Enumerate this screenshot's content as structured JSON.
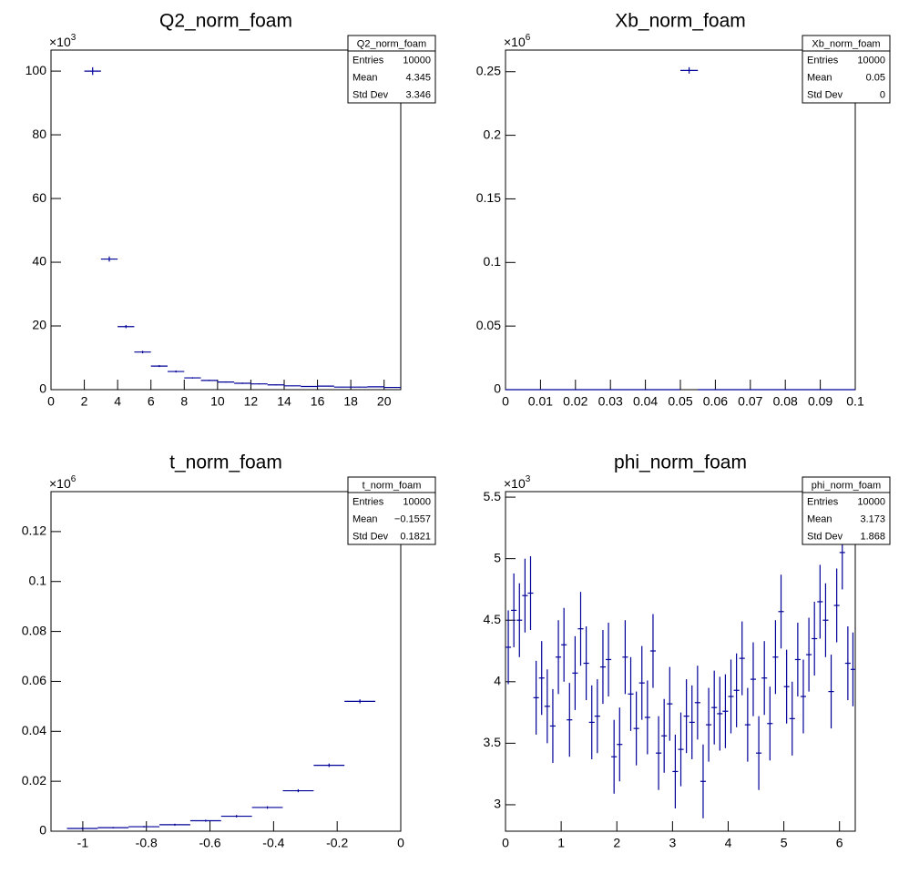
{
  "chart_data": [
    {
      "type": "histogram",
      "title": "Q2_norm_foam",
      "color": "#000099",
      "y_multiplier": {
        "base": "×10",
        "exponent": "3"
      },
      "stats": {
        "title": "Q2_norm_foam",
        "rows": [
          [
            "Entries",
            "10000"
          ],
          [
            "Mean",
            "4.345"
          ],
          [
            "Std Dev",
            "3.346"
          ]
        ]
      },
      "bins": [
        2,
        3,
        4,
        5,
        6,
        7,
        8,
        9,
        10,
        11,
        12,
        13,
        14,
        15,
        16,
        17,
        18,
        19,
        20,
        21
      ],
      "values": [
        100,
        41,
        19.8,
        11.8,
        7.4,
        5.7,
        3.7,
        2.9,
        2.4,
        2.0,
        1.8,
        1.5,
        1.2,
        1.0,
        1.1,
        0.8,
        0.8,
        0.9,
        0.7
      ],
      "errors": [
        1.2,
        0.8,
        0.5,
        0.4,
        0.3,
        0.3,
        0.2,
        0.2,
        0.2,
        0.2,
        0.15,
        0.15,
        0.1,
        0.1,
        0.1,
        0.1,
        0.1,
        0.1,
        0.1
      ],
      "xlim": [
        0,
        21
      ],
      "xticks": [
        0,
        2,
        4,
        6,
        8,
        10,
        12,
        14,
        16,
        18,
        20
      ],
      "ylim": [
        0,
        106.6
      ],
      "yticks": [
        0,
        20,
        40,
        60,
        80,
        100
      ]
    },
    {
      "type": "histogram",
      "title": "Xb_norm_foam",
      "color": "#000099",
      "y_multiplier": {
        "base": "×10",
        "exponent": "6"
      },
      "stats": {
        "title": "Xb_norm_foam",
        "rows": [
          [
            "Entries",
            "10000"
          ],
          [
            "Mean",
            "0.05"
          ],
          [
            "Std Dev",
            "0"
          ]
        ]
      },
      "bins": [
        0,
        0.005,
        0.01,
        0.015,
        0.02,
        0.025,
        0.03,
        0.035,
        0.04,
        0.045,
        0.05,
        0.055,
        0.06,
        0.065,
        0.07,
        0.075,
        0.08,
        0.085,
        0.09,
        0.095,
        0.1
      ],
      "values": [
        0,
        0,
        0,
        0,
        0,
        0,
        0,
        0,
        0,
        0,
        0.251,
        0,
        0,
        0,
        0,
        0,
        0,
        0,
        0,
        0
      ],
      "errors": [
        0,
        0,
        0,
        0,
        0,
        0,
        0,
        0,
        0,
        0,
        0.0025,
        0,
        0,
        0,
        0,
        0,
        0,
        0,
        0,
        0
      ],
      "xlim": [
        0,
        0.1
      ],
      "xticks": [
        0,
        0.01,
        0.02,
        0.03,
        0.04,
        0.05,
        0.06,
        0.07,
        0.08,
        0.09,
        0.1
      ],
      "ylim": [
        0,
        0.267
      ],
      "yticks": [
        0,
        0.05,
        0.1,
        0.15,
        0.2,
        0.25
      ]
    },
    {
      "type": "histogram",
      "title": "t_norm_foam",
      "color": "#000099",
      "y_multiplier": {
        "base": "×10",
        "exponent": "6"
      },
      "stats": {
        "title": "t_norm_foam",
        "rows": [
          [
            "Entries",
            "10000"
          ],
          [
            "Mean",
            "−0.1557"
          ],
          [
            "Std Dev",
            "0.1821"
          ]
        ]
      },
      "bins": [
        -1.05,
        -0.953,
        -0.856,
        -0.759,
        -0.662,
        -0.565,
        -0.468,
        -0.371,
        -0.274,
        -0.177,
        -0.08
      ],
      "values": [
        0.0011,
        0.0014,
        0.0018,
        0.0026,
        0.0042,
        0.006,
        0.0095,
        0.0162,
        0.0264,
        0.052
      ],
      "errors": [
        0.0003,
        0.0003,
        0.0003,
        0.0004,
        0.0004,
        0.0005,
        0.0005,
        0.0006,
        0.0007,
        0.0008
      ],
      "xlim": [
        -1.1,
        0
      ],
      "xticks": [
        -1,
        -0.8,
        -0.6,
        -0.4,
        -0.2,
        0
      ],
      "ylim": [
        0,
        0.136
      ],
      "yticks": [
        0,
        0.02,
        0.04,
        0.06,
        0.08,
        0.1,
        0.12
      ]
    },
    {
      "type": "histogram",
      "title": "phi_norm_foam",
      "color": "#000099",
      "y_multiplier": {
        "base": "×10",
        "exponent": "3"
      },
      "stats": {
        "title": "phi_norm_foam",
        "rows": [
          [
            "Entries",
            "10000"
          ],
          [
            "Mean",
            "3.173"
          ],
          [
            "Std Dev",
            "1.868"
          ]
        ]
      },
      "bins": [
        0,
        0.1,
        0.2,
        0.3,
        0.4,
        0.5,
        0.6,
        0.7,
        0.8,
        0.9,
        1,
        1.1,
        1.2,
        1.3,
        1.4,
        1.5,
        1.6,
        1.7,
        1.8,
        1.9,
        2,
        2.1,
        2.2,
        2.3,
        2.4,
        2.5,
        2.6,
        2.7,
        2.8,
        2.9,
        3,
        3.1,
        3.2,
        3.3,
        3.4,
        3.5,
        3.6,
        3.7,
        3.8,
        3.9,
        4,
        4.1,
        4.2,
        4.3,
        4.4,
        4.5,
        4.6,
        4.7,
        4.8,
        4.9,
        5,
        5.1,
        5.2,
        5.3,
        5.4,
        5.5,
        5.6,
        5.7,
        5.8,
        5.9,
        6,
        6.1,
        6.2,
        6.283
      ],
      "values": [
        4.28,
        4.58,
        4.5,
        4.7,
        4.72,
        3.87,
        4.03,
        3.8,
        3.64,
        4.2,
        4.3,
        3.69,
        4.07,
        4.43,
        4.15,
        3.67,
        3.72,
        4.12,
        4.18,
        3.39,
        3.49,
        4.2,
        3.9,
        3.62,
        3.99,
        3.71,
        4.25,
        3.42,
        3.56,
        3.82,
        3.27,
        3.45,
        3.72,
        3.67,
        3.83,
        3.19,
        3.65,
        3.79,
        3.74,
        3.76,
        3.88,
        3.93,
        4.19,
        3.65,
        4.02,
        3.42,
        4.03,
        3.66,
        4.2,
        4.57,
        3.96,
        3.7,
        4.18,
        3.88,
        4.22,
        4.35,
        4.65,
        4.5,
        3.92,
        4.62,
        5.05,
        4.15,
        4.1
      ],
      "errors": [
        0.3,
        0.3,
        0.3,
        0.3,
        0.3,
        0.3,
        0.3,
        0.3,
        0.3,
        0.3,
        0.3,
        0.3,
        0.3,
        0.3,
        0.3,
        0.3,
        0.3,
        0.3,
        0.3,
        0.3,
        0.3,
        0.3,
        0.3,
        0.3,
        0.3,
        0.3,
        0.3,
        0.3,
        0.3,
        0.3,
        0.3,
        0.3,
        0.3,
        0.3,
        0.3,
        0.3,
        0.3,
        0.3,
        0.3,
        0.3,
        0.3,
        0.3,
        0.3,
        0.3,
        0.3,
        0.3,
        0.3,
        0.3,
        0.3,
        0.3,
        0.3,
        0.3,
        0.3,
        0.3,
        0.3,
        0.3,
        0.3,
        0.3,
        0.3,
        0.3,
        0.3,
        0.3,
        0.3
      ],
      "xlim": [
        0,
        6.283
      ],
      "xticks": [
        0,
        1,
        2,
        3,
        4,
        5,
        6
      ],
      "ylim": [
        2.785,
        5.545
      ],
      "yticks": [
        3,
        3.5,
        4,
        4.5,
        5,
        5.5
      ]
    }
  ]
}
